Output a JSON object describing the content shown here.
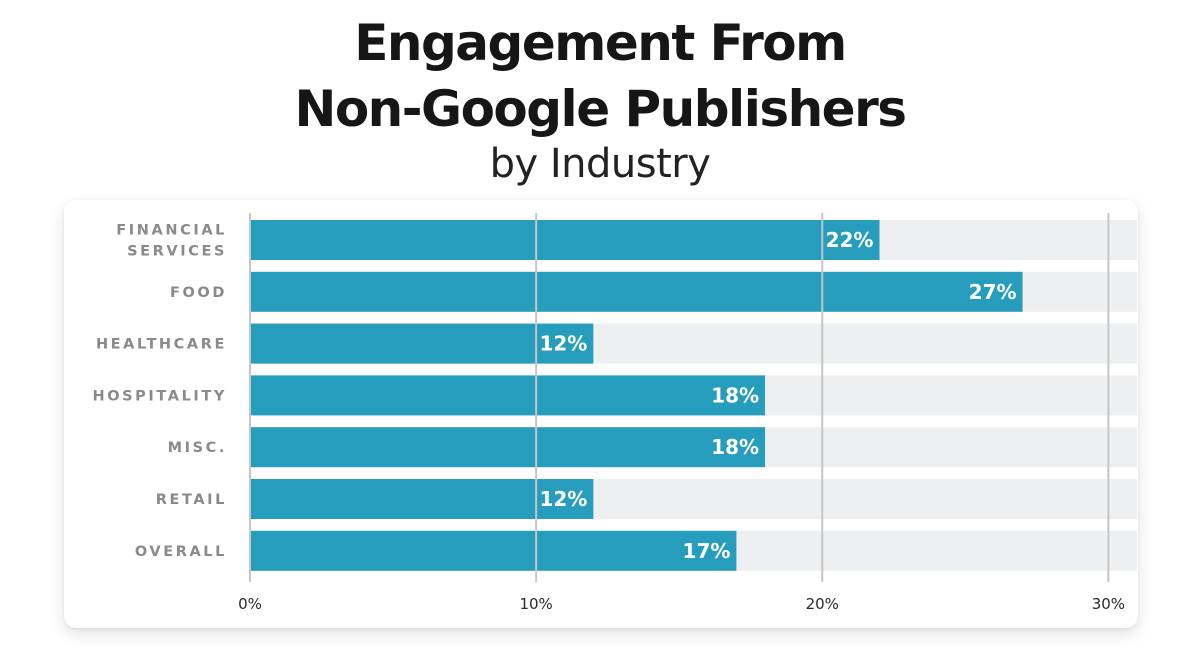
{
  "chart_data": {
    "type": "bar",
    "orientation": "horizontal",
    "title_line1": "Engagement From",
    "title_line2": "Non-Google Publishers",
    "subtitle": "by Industry",
    "categories": [
      [
        "FINANCIAL",
        "SERVICES"
      ],
      [
        "FOOD"
      ],
      [
        "HEALTHCARE"
      ],
      [
        "HOSPITALITY"
      ],
      [
        "MISC."
      ],
      [
        "RETAIL"
      ],
      [
        "OVERALL"
      ]
    ],
    "values": [
      22,
      27,
      12,
      18,
      18,
      12,
      17
    ],
    "value_labels": [
      "22%",
      "27%",
      "12%",
      "18%",
      "18%",
      "12%",
      "17%"
    ],
    "xlim": [
      0,
      31
    ],
    "x_ticks": [
      0,
      10,
      20,
      30
    ],
    "x_tick_labels": [
      "0%",
      "10%",
      "20%",
      "30%"
    ],
    "grid": true,
    "colors": {
      "bar": "#269dbd",
      "track": "#eeeff1",
      "grid": "#c6c6c6"
    }
  }
}
